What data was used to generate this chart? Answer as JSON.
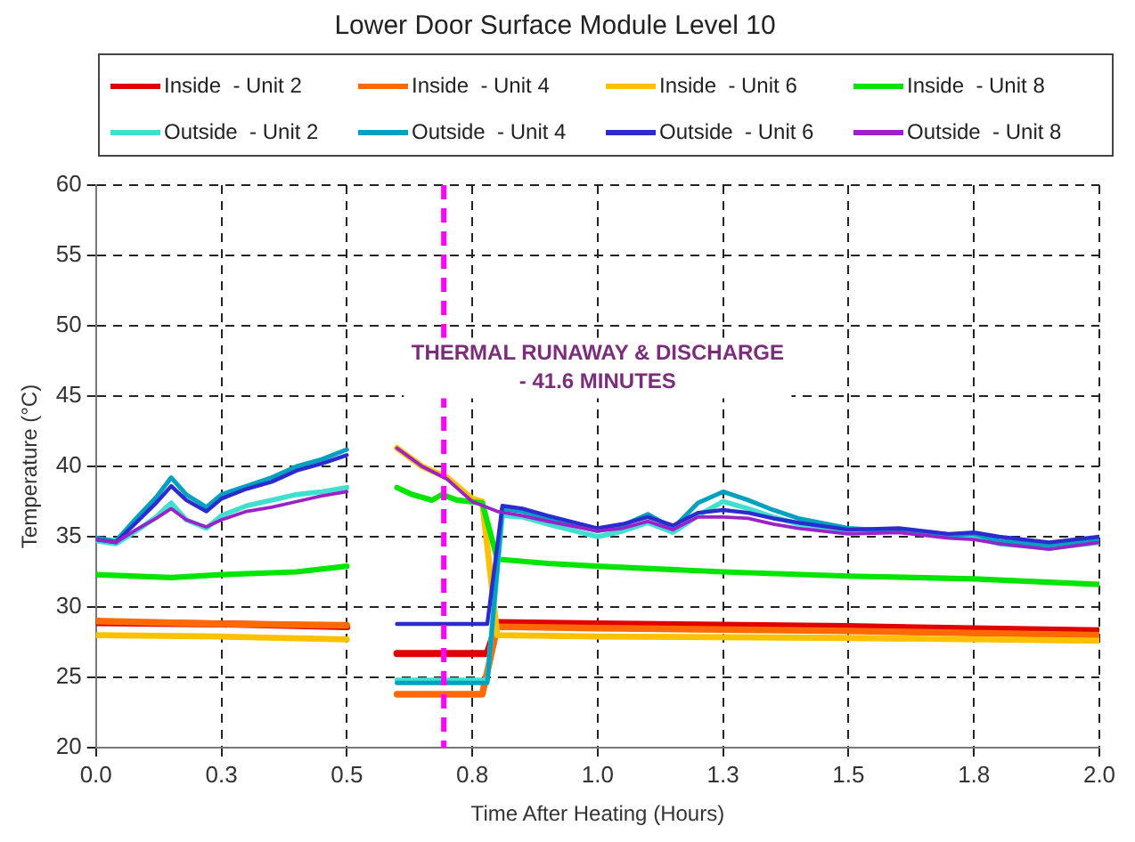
{
  "chart_data": {
    "type": "line",
    "title": "Lower Door Surface Module Level 10",
    "xlabel": "Time After Heating (Hours)",
    "ylabel": "Temperature (°C)",
    "xlim": [
      0,
      2
    ],
    "xticks": [
      {
        "value": 0,
        "label": "0.0"
      },
      {
        "value": 0.25,
        "label": "0.3"
      },
      {
        "value": 0.5,
        "label": "0.5"
      },
      {
        "value": 0.75,
        "label": "0.8"
      },
      {
        "value": 1,
        "label": "1.0"
      },
      {
        "value": 1.25,
        "label": "1.3"
      },
      {
        "value": 1.5,
        "label": "1.5"
      },
      {
        "value": 1.75,
        "label": "1.8"
      },
      {
        "value": 2,
        "label": "2.0"
      }
    ],
    "ylim": [
      20,
      60
    ],
    "yticks": [
      20,
      25,
      30,
      35,
      40,
      45,
      50,
      55,
      60
    ],
    "grid": true,
    "legend": "top",
    "marker": "none",
    "line_style": "solid",
    "ref_lines": [
      {
        "axis": "x",
        "value": 0.6933,
        "color": "#ff00ff",
        "line_style": "dashed"
      }
    ],
    "annotations": [
      "THERMAL RUNAWAY & DISCHARGE\n- 41.6 MINUTES"
    ],
    "series": [
      {
        "name": "Inside  - Unit 2",
        "color": "#e00000",
        "x": [
          0,
          0.25,
          0.5,
          0.55,
          0.6,
          0.78,
          0.8,
          1,
          1.5,
          2
        ],
        "values": [
          28.9,
          28.8,
          28.6,
          null,
          26.7,
          26.7,
          28.9,
          28.8,
          28.6,
          28.3
        ]
      },
      {
        "name": "Inside  - Unit 4",
        "color": "#ff6a00",
        "x": [
          0,
          0.25,
          0.5,
          0.55,
          0.6,
          0.77,
          0.8,
          1,
          1.5,
          2
        ],
        "values": [
          29,
          28.8,
          28.7,
          null,
          23.8,
          23.8,
          28.6,
          28.5,
          28.3,
          28
        ]
      },
      {
        "name": "Inside  - Unit 6",
        "color": "#ffc000",
        "x": [
          0,
          0.25,
          0.5,
          0.55,
          0.6,
          0.65,
          0.7,
          0.75,
          0.77,
          0.8,
          1,
          1.5,
          2
        ],
        "values": [
          28,
          27.9,
          27.7,
          null,
          41.3,
          40,
          39.2,
          37.7,
          37.5,
          28,
          27.9,
          27.8,
          27.6
        ]
      },
      {
        "name": "Inside  - Unit 8",
        "color": "#00e600",
        "x": [
          0,
          0.15,
          0.25,
          0.4,
          0.5,
          0.55,
          0.6,
          0.63,
          0.67,
          0.69,
          0.72,
          0.77,
          0.8,
          0.9,
          1,
          1.25,
          1.5,
          1.75,
          2
        ],
        "values": [
          32.3,
          32.1,
          32.3,
          32.5,
          32.9,
          null,
          38.5,
          38,
          37.6,
          38,
          37.6,
          37.4,
          33.4,
          33.1,
          32.9,
          32.5,
          32.2,
          32,
          31.6
        ]
      },
      {
        "name": "Outside  - Unit 2",
        "color": "#40e0d0",
        "x": [
          0,
          0.04,
          0.08,
          0.12,
          0.15,
          0.18,
          0.22,
          0.25,
          0.3,
          0.35,
          0.4,
          0.45,
          0.5,
          0.55,
          0.6,
          0.78,
          0.81,
          0.85,
          0.9,
          1,
          1.05,
          1.1,
          1.15,
          1.2,
          1.25,
          1.3,
          1.35,
          1.4,
          1.5,
          1.6,
          1.7,
          1.75,
          1.8,
          1.9,
          2
        ],
        "values": [
          34.7,
          34.5,
          35.4,
          36.4,
          37.4,
          36.2,
          35.6,
          36.5,
          37.2,
          37.6,
          38,
          38.2,
          38.5,
          null,
          24.8,
          24.8,
          36.5,
          36.4,
          35.9,
          35,
          35.4,
          36,
          35.3,
          36.5,
          37.5,
          37,
          36.4,
          35.9,
          35.4,
          35.5,
          35,
          35,
          34.5,
          34.2,
          34.6
        ]
      },
      {
        "name": "Outside  - Unit 4",
        "color": "#00a0c0",
        "x": [
          0,
          0.04,
          0.08,
          0.12,
          0.15,
          0.18,
          0.22,
          0.25,
          0.3,
          0.35,
          0.4,
          0.45,
          0.5,
          0.55,
          0.6,
          0.78,
          0.81,
          0.85,
          0.9,
          1,
          1.05,
          1.1,
          1.15,
          1.2,
          1.25,
          1.3,
          1.35,
          1.4,
          1.5,
          1.6,
          1.7,
          1.75,
          1.8,
          1.9,
          2
        ],
        "values": [
          34.9,
          34.7,
          36.3,
          37.8,
          39.2,
          38,
          37.1,
          38,
          38.6,
          39.2,
          40,
          40.5,
          41.2,
          null,
          24.6,
          24.6,
          37,
          36.8,
          36.3,
          35.4,
          35.8,
          36.6,
          35.6,
          37.4,
          38.2,
          37.6,
          36.9,
          36.3,
          35.6,
          35.4,
          35.1,
          35.2,
          34.7,
          34.4,
          34.8
        ]
      },
      {
        "name": "Outside  - Unit 6",
        "color": "#2b2bd0",
        "x": [
          0,
          0.04,
          0.08,
          0.12,
          0.15,
          0.18,
          0.22,
          0.25,
          0.3,
          0.35,
          0.4,
          0.45,
          0.5,
          0.55,
          0.6,
          0.78,
          0.81,
          0.85,
          0.9,
          1,
          1.05,
          1.1,
          1.15,
          1.2,
          1.25,
          1.3,
          1.35,
          1.4,
          1.5,
          1.6,
          1.7,
          1.75,
          1.8,
          1.9,
          2
        ],
        "values": [
          34.8,
          34.6,
          36,
          37.4,
          38.6,
          37.6,
          36.8,
          37.7,
          38.4,
          38.9,
          39.7,
          40.2,
          40.8,
          null,
          28.8,
          28.8,
          37.2,
          37,
          36.5,
          35.6,
          35.9,
          36.4,
          35.8,
          36.7,
          36.9,
          36.7,
          36.3,
          36,
          35.5,
          35.6,
          35.2,
          35.3,
          35,
          34.6,
          35
        ]
      },
      {
        "name": "Outside  - Unit 8",
        "color": "#9a22c8",
        "x": [
          0,
          0.04,
          0.08,
          0.12,
          0.15,
          0.18,
          0.22,
          0.25,
          0.3,
          0.35,
          0.4,
          0.45,
          0.5,
          0.55,
          0.6,
          0.65,
          0.7,
          0.75,
          0.8,
          0.85,
          0.9,
          1,
          1.05,
          1.1,
          1.15,
          1.2,
          1.25,
          1.3,
          1.35,
          1.4,
          1.5,
          1.6,
          1.7,
          1.75,
          1.8,
          1.9,
          2
        ],
        "values": [
          34.8,
          34.6,
          35.5,
          36.3,
          37,
          36.2,
          35.7,
          36.2,
          36.8,
          37.1,
          37.5,
          37.9,
          38.2,
          null,
          41.3,
          40,
          39.1,
          37.5,
          36.8,
          36.5,
          36.1,
          35.4,
          35.6,
          36.1,
          35.5,
          36.4,
          36.4,
          36.3,
          35.9,
          35.6,
          35.2,
          35.3,
          34.9,
          34.8,
          34.5,
          34.1,
          34.6
        ]
      }
    ]
  }
}
